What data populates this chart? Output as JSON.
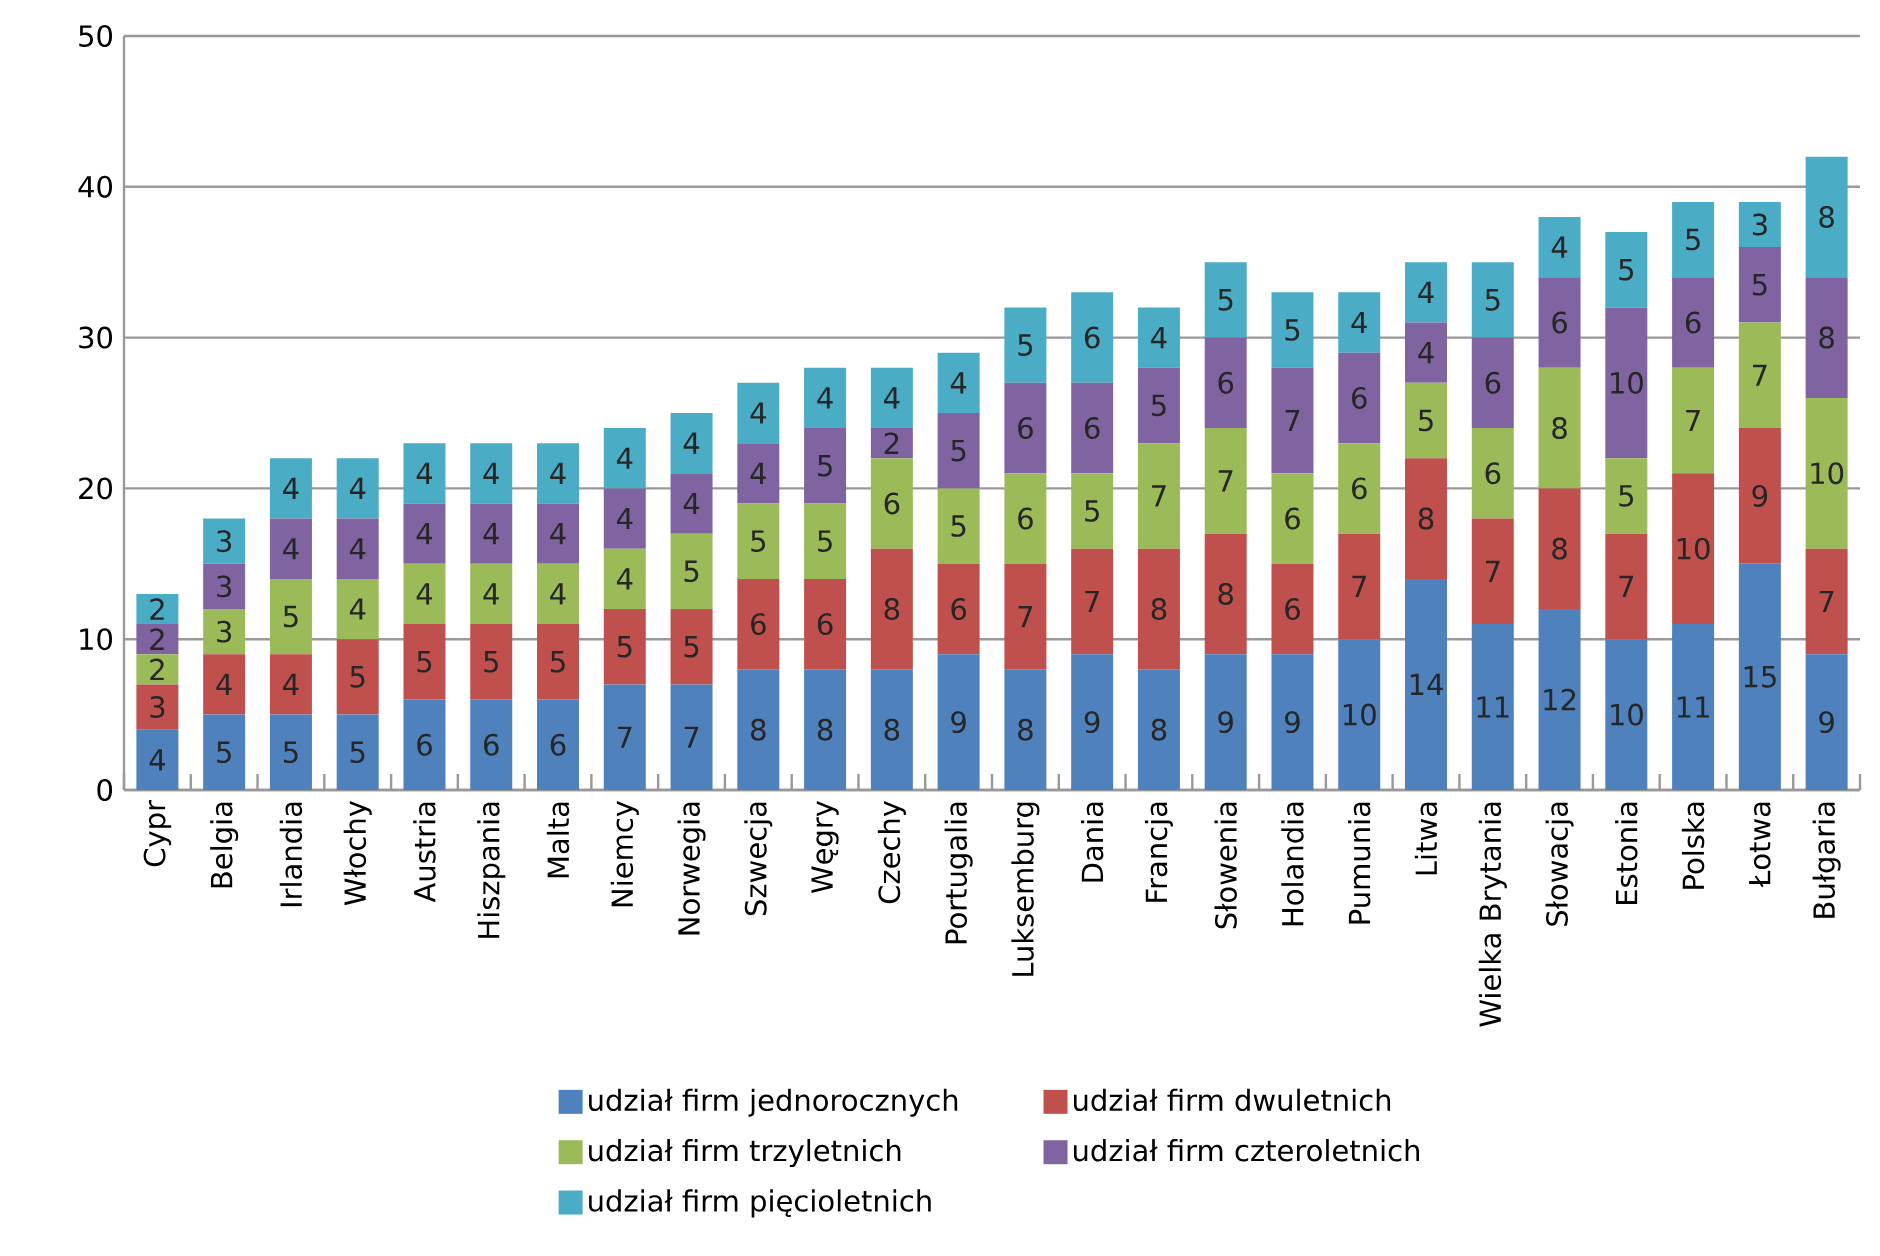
{
  "chart_data": {
    "type": "bar",
    "stacked": true,
    "data_labels": true,
    "grid": "y",
    "legend": "bottom",
    "categories": [
      "Cypr",
      "Belgia",
      "Irlandia",
      "Włochy",
      "Austria",
      "Hiszpania",
      "Malta",
      "Niemcy",
      "Norwegia",
      "Szwecja",
      "Węgry",
      "Czechy",
      "Portugalia",
      "Luksemburg",
      "Dania",
      "Francja",
      "Słowenia",
      "Holandia",
      "Pumunia",
      "Litwa",
      "Wielka Brytania",
      "Słowacja",
      "Estonia",
      "Polska",
      "Łotwa",
      "Bułgaria"
    ],
    "ylim": [
      0,
      50
    ],
    "yticks": [
      0,
      10,
      20,
      30,
      40,
      50
    ],
    "series": [
      {
        "name": "udział firm jednorocznych",
        "color": "#4f81bd",
        "values": [
          4,
          5,
          5,
          5,
          6,
          6,
          6,
          7,
          7,
          8,
          8,
          8,
          9,
          8,
          9,
          8,
          9,
          9,
          10,
          14,
          11,
          12,
          10,
          11,
          15,
          9
        ]
      },
      {
        "name": "udział firm dwuletnich",
        "color": "#c0504d",
        "values": [
          3,
          4,
          4,
          5,
          5,
          5,
          5,
          5,
          5,
          6,
          6,
          8,
          6,
          7,
          7,
          8,
          8,
          6,
          7,
          8,
          7,
          8,
          7,
          10,
          9,
          7
        ]
      },
      {
        "name": "udział firm trzyletnich",
        "color": "#9bbb59",
        "values": [
          2,
          3,
          5,
          4,
          4,
          4,
          4,
          4,
          5,
          5,
          5,
          6,
          5,
          6,
          5,
          7,
          7,
          6,
          6,
          5,
          6,
          8,
          5,
          7,
          7,
          10
        ]
      },
      {
        "name": "udział firm czteroletnich",
        "color": "#8064a2",
        "values": [
          2,
          3,
          4,
          4,
          4,
          4,
          4,
          4,
          4,
          4,
          5,
          2,
          5,
          6,
          6,
          5,
          6,
          7,
          6,
          4,
          6,
          6,
          10,
          6,
          5,
          8
        ]
      },
      {
        "name": "udział firm pięcioletnich",
        "color": "#4bacc6",
        "values": [
          2,
          3,
          4,
          4,
          4,
          4,
          4,
          4,
          4,
          4,
          4,
          4,
          4,
          5,
          6,
          4,
          5,
          5,
          4,
          4,
          5,
          4,
          5,
          5,
          3,
          8
        ]
      }
    ]
  }
}
